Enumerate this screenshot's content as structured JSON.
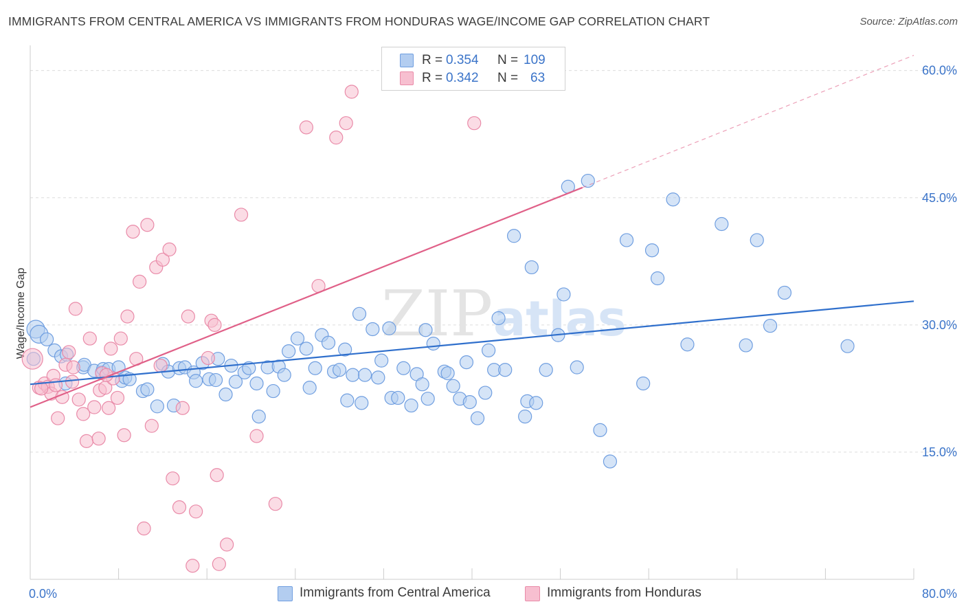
{
  "title": "IMMIGRANTS FROM CENTRAL AMERICA VS IMMIGRANTS FROM HONDURAS WAGE/INCOME GAP CORRELATION CHART",
  "source": "Source: ZipAtlas.com",
  "watermark": {
    "zip": "ZIP",
    "atlas": "atlas"
  },
  "colors": {
    "blue_fill": "#b3cdf0",
    "blue_stroke": "#6f9ee0",
    "blue_line": "#2f6fcc",
    "pink_fill": "#f7bfd0",
    "pink_stroke": "#e98aa8",
    "pink_line": "#e06088",
    "axis_text": "#3b74c9",
    "grid": "#dcdcdc"
  },
  "legend": {
    "rows": [
      {
        "r_label": "R =",
        "r_value": "0.354",
        "n_label": "N =",
        "n_value": "109"
      },
      {
        "r_label": "R =",
        "r_value": "0.342",
        "n_label": "N =",
        "n_value": "63"
      }
    ]
  },
  "chart_data": {
    "type": "scatter",
    "xlabel": "",
    "ylabel": "Wage/Income Gap",
    "xlim": [
      0,
      80
    ],
    "ylim": [
      0,
      62
    ],
    "x_tick_labels": [
      "0.0%",
      "80.0%"
    ],
    "y_ticks": [
      15,
      30,
      45,
      60
    ],
    "y_tick_labels": [
      "15.0%",
      "30.0%",
      "45.0%",
      "60.0%"
    ],
    "grid": true,
    "legend_position": "top-center and bottom",
    "series": [
      {
        "name": "Immigrants from Central America",
        "color": "#6f9ee0",
        "trend": {
          "x0": 0,
          "y0": 23.0,
          "x1": 80,
          "y1": 32.8
        },
        "points": [
          [
            0.5,
            29.5
          ],
          [
            0.8,
            28.9
          ],
          [
            1.5,
            28.3
          ],
          [
            2.2,
            27.0
          ],
          [
            2.8,
            26.3
          ],
          [
            3.3,
            26.5
          ],
          [
            4.8,
            25.0
          ],
          [
            4.9,
            25.3
          ],
          [
            5.8,
            24.6
          ],
          [
            6.5,
            24.4
          ],
          [
            6.6,
            24.8
          ],
          [
            7.1,
            24.8
          ],
          [
            8.3,
            23.4
          ],
          [
            8.6,
            23.8
          ],
          [
            9.0,
            23.6
          ],
          [
            10.2,
            22.2
          ],
          [
            10.6,
            22.4
          ],
          [
            12.0,
            25.4
          ],
          [
            12.5,
            24.5
          ],
          [
            13.5,
            24.9
          ],
          [
            14.0,
            25.0
          ],
          [
            14.8,
            24.4
          ],
          [
            15.6,
            25.5
          ],
          [
            16.2,
            23.6
          ],
          [
            16.8,
            23.5
          ],
          [
            17.7,
            21.8
          ],
          [
            18.2,
            25.2
          ],
          [
            18.6,
            23.3
          ],
          [
            19.4,
            24.4
          ],
          [
            19.8,
            24.9
          ],
          [
            20.5,
            23.1
          ],
          [
            20.7,
            19.2
          ],
          [
            21.5,
            25.0
          ],
          [
            22.0,
            22.2
          ],
          [
            22.5,
            25.1
          ],
          [
            23.0,
            24.1
          ],
          [
            23.4,
            26.9
          ],
          [
            24.2,
            28.4
          ],
          [
            25.0,
            27.2
          ],
          [
            25.3,
            22.6
          ],
          [
            25.8,
            24.9
          ],
          [
            26.4,
            28.8
          ],
          [
            27.0,
            27.9
          ],
          [
            27.5,
            24.5
          ],
          [
            28.0,
            24.7
          ],
          [
            28.5,
            27.1
          ],
          [
            28.7,
            21.1
          ],
          [
            29.2,
            24.1
          ],
          [
            29.8,
            31.3
          ],
          [
            30.3,
            24.1
          ],
          [
            31.0,
            29.5
          ],
          [
            31.5,
            23.8
          ],
          [
            31.8,
            25.8
          ],
          [
            32.5,
            29.6
          ],
          [
            32.7,
            21.4
          ],
          [
            33.3,
            21.4
          ],
          [
            33.8,
            24.9
          ],
          [
            34.5,
            20.5
          ],
          [
            35.0,
            24.2
          ],
          [
            35.5,
            23.0
          ],
          [
            35.8,
            29.4
          ],
          [
            36.5,
            27.8
          ],
          [
            37.5,
            24.5
          ],
          [
            37.8,
            24.3
          ],
          [
            38.3,
            22.8
          ],
          [
            38.9,
            21.3
          ],
          [
            39.5,
            25.6
          ],
          [
            39.8,
            20.9
          ],
          [
            40.5,
            19.0
          ],
          [
            41.2,
            22.0
          ],
          [
            41.5,
            27.0
          ],
          [
            42.0,
            24.7
          ],
          [
            42.4,
            30.8
          ],
          [
            43.0,
            24.7
          ],
          [
            43.8,
            40.5
          ],
          [
            44.8,
            19.2
          ],
          [
            45.0,
            21.0
          ],
          [
            45.4,
            36.8
          ],
          [
            45.8,
            20.8
          ],
          [
            46.7,
            24.7
          ],
          [
            47.8,
            28.8
          ],
          [
            48.3,
            33.6
          ],
          [
            48.7,
            46.3
          ],
          [
            49.5,
            25.0
          ],
          [
            50.5,
            47.0
          ],
          [
            51.6,
            17.6
          ],
          [
            52.5,
            13.9
          ],
          [
            54.0,
            40.0
          ],
          [
            55.5,
            23.1
          ],
          [
            56.3,
            38.8
          ],
          [
            56.8,
            35.5
          ],
          [
            58.2,
            44.8
          ],
          [
            59.5,
            27.7
          ],
          [
            62.6,
            41.9
          ],
          [
            64.8,
            27.6
          ],
          [
            65.8,
            40.0
          ],
          [
            67.0,
            29.9
          ],
          [
            68.3,
            33.8
          ],
          [
            74.0,
            27.5
          ],
          [
            0.3,
            26.0
          ],
          [
            11.5,
            20.4
          ],
          [
            17.0,
            26.0
          ],
          [
            3.2,
            23.1
          ],
          [
            8.0,
            25.0
          ],
          [
            13.0,
            20.5
          ],
          [
            30.0,
            20.8
          ],
          [
            15.0,
            23.4
          ],
          [
            36.0,
            21.3
          ]
        ]
      },
      {
        "name": "Immigrants from Honduras",
        "color": "#e98aa8",
        "trend": {
          "x0": 0,
          "y0": 20.3,
          "x1": 50,
          "y1": 46.2,
          "dash_x1": 80,
          "dash_y1": 61.8
        },
        "points": [
          [
            0.2,
            26.0
          ],
          [
            0.8,
            22.6
          ],
          [
            1.3,
            23.1
          ],
          [
            1.6,
            22.7
          ],
          [
            1.9,
            21.9
          ],
          [
            2.1,
            24.0
          ],
          [
            2.5,
            19.0
          ],
          [
            2.9,
            21.5
          ],
          [
            3.2,
            25.3
          ],
          [
            3.5,
            26.8
          ],
          [
            3.9,
            25.0
          ],
          [
            4.1,
            31.9
          ],
          [
            4.4,
            21.2
          ],
          [
            4.8,
            19.5
          ],
          [
            5.1,
            16.3
          ],
          [
            5.4,
            28.4
          ],
          [
            5.8,
            20.3
          ],
          [
            6.2,
            16.6
          ],
          [
            6.3,
            22.3
          ],
          [
            6.5,
            24.3
          ],
          [
            6.8,
            22.6
          ],
          [
            7.1,
            20.2
          ],
          [
            7.3,
            27.2
          ],
          [
            7.5,
            23.7
          ],
          [
            7.9,
            21.4
          ],
          [
            8.2,
            28.4
          ],
          [
            8.5,
            17.0
          ],
          [
            8.8,
            31.0
          ],
          [
            9.3,
            41.0
          ],
          [
            9.9,
            35.1
          ],
          [
            10.3,
            6.0
          ],
          [
            10.6,
            41.8
          ],
          [
            11.0,
            18.1
          ],
          [
            11.4,
            36.8
          ],
          [
            11.8,
            25.2
          ],
          [
            12.0,
            37.7
          ],
          [
            12.6,
            38.9
          ],
          [
            12.9,
            11.9
          ],
          [
            13.5,
            8.5
          ],
          [
            13.8,
            20.2
          ],
          [
            14.3,
            31.0
          ],
          [
            14.7,
            1.6
          ],
          [
            15.0,
            8.0
          ],
          [
            16.1,
            26.1
          ],
          [
            16.4,
            30.5
          ],
          [
            16.7,
            30.0
          ],
          [
            16.9,
            12.3
          ],
          [
            17.1,
            1.8
          ],
          [
            17.8,
            4.1
          ],
          [
            19.1,
            43.0
          ],
          [
            20.5,
            16.9
          ],
          [
            22.2,
            8.9
          ],
          [
            25.0,
            53.3
          ],
          [
            26.1,
            34.6
          ],
          [
            27.7,
            52.1
          ],
          [
            28.6,
            53.8
          ],
          [
            29.1,
            57.5
          ],
          [
            40.2,
            53.8
          ],
          [
            1.0,
            22.5
          ],
          [
            2.3,
            22.9
          ],
          [
            3.8,
            23.3
          ],
          [
            6.9,
            24.1
          ],
          [
            9.6,
            26.0
          ]
        ]
      }
    ]
  }
}
